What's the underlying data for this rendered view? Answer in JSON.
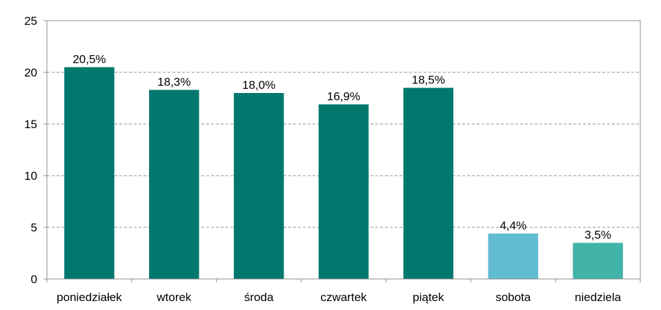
{
  "chart_data": {
    "type": "bar",
    "title": "",
    "xlabel": "",
    "ylabel": "",
    "ylim": [
      0,
      25
    ],
    "yticks": [
      0,
      5,
      10,
      15,
      20,
      25
    ],
    "grid": true,
    "categories": [
      "poniedziałek",
      "wtorek",
      "środa",
      "czwartek",
      "piątek",
      "sobota",
      "niedziela"
    ],
    "values": [
      20.5,
      18.3,
      18.0,
      16.9,
      18.5,
      4.4,
      3.5
    ],
    "data_labels": [
      "20,5%",
      "18,3%",
      "18,0%",
      "16,9%",
      "18,5%",
      "4,4%",
      "3,5%"
    ],
    "colors": [
      "#00786e",
      "#00786e",
      "#00786e",
      "#00786e",
      "#00786e",
      "#62bcd2",
      "#41b3a8"
    ]
  }
}
